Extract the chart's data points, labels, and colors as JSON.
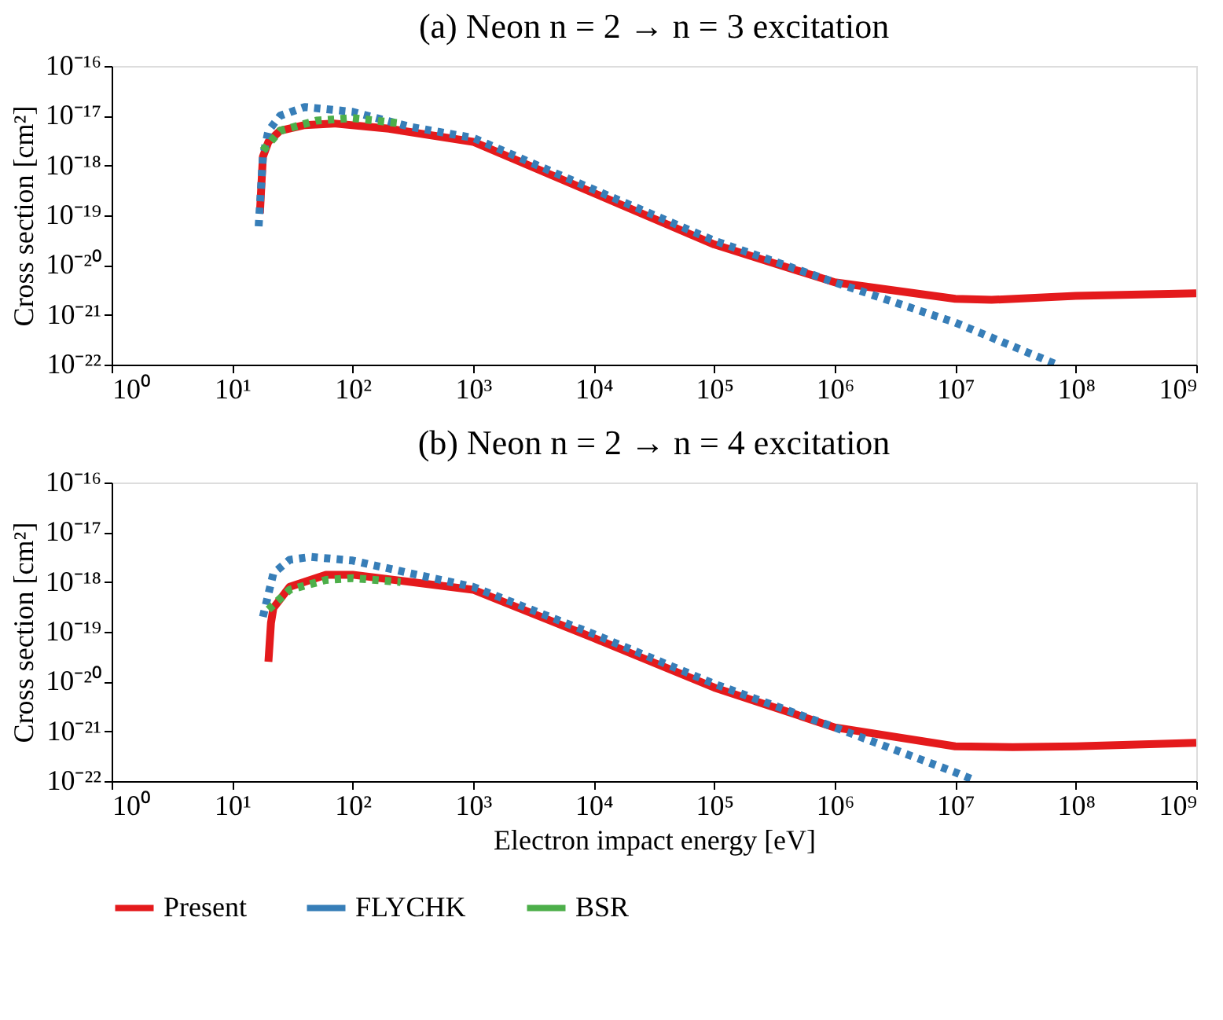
{
  "chart_data": [
    {
      "type": "line",
      "title": "(a) Neon n = 2 → n = 3 excitation",
      "ylabel": "Cross section [cm²]",
      "log": "xy",
      "legend": "bottom",
      "xlim": [
        1,
        1000000000
      ],
      "ylim": [
        1e-22,
        1e-16
      ],
      "xticks": [
        {
          "value": 1,
          "label": "10⁰"
        },
        {
          "value": 10,
          "label": "10¹"
        },
        {
          "value": 100,
          "label": "10²"
        },
        {
          "value": 1000,
          "label": "10³"
        },
        {
          "value": 10000,
          "label": "10⁴"
        },
        {
          "value": 100000,
          "label": "10⁵"
        },
        {
          "value": 1000000,
          "label": "10⁶"
        },
        {
          "value": 10000000,
          "label": "10⁷"
        },
        {
          "value": 100000000,
          "label": "10⁸"
        },
        {
          "value": 1000000000,
          "label": "10⁹"
        }
      ],
      "yticks": [
        {
          "value": 1e-22,
          "label": "10⁻²²"
        },
        {
          "value": 1e-21,
          "label": "10⁻²¹"
        },
        {
          "value": 1e-20,
          "label": "10⁻²⁰"
        },
        {
          "value": 1e-19,
          "label": "10⁻¹⁹"
        },
        {
          "value": 1e-18,
          "label": "10⁻¹⁸"
        },
        {
          "value": 1e-17,
          "label": "10⁻¹⁷"
        },
        {
          "value": 1e-16,
          "label": "10⁻¹⁶"
        }
      ],
      "series": [
        {
          "name": "Present",
          "color": "#e41a1c",
          "line_style": "solid",
          "x": [
            17,
            18,
            20,
            25,
            40,
            70,
            200,
            1000,
            10000,
            100000,
            1000000,
            10000000,
            20000000,
            100000000,
            1000000000
          ],
          "values": [
            1.1e-19,
            1.5e-18,
            3e-18,
            5e-18,
            6.5e-18,
            7e-18,
            5.5e-18,
            3e-18,
            2.8e-19,
            2.6e-20,
            4.5e-21,
            2.1e-21,
            2e-21,
            2.4e-21,
            2.7e-21
          ]
        },
        {
          "name": "FLYCHK",
          "color": "#377eb8",
          "line_style": "dotted",
          "x": [
            16.6,
            18,
            20,
            25,
            40,
            100,
            300,
            1000,
            10000,
            100000,
            1000000,
            10000000,
            70000000
          ],
          "values": [
            6e-20,
            1.5e-18,
            5e-18,
            1e-17,
            1.5e-17,
            1.2e-17,
            6e-18,
            3.6e-18,
            3.3e-19,
            3.1e-20,
            4.5e-21,
            7e-22,
            1e-22
          ]
        },
        {
          "name": "BSR",
          "color": "#4daf4a",
          "line_style": "dotted",
          "x": [
            18,
            25,
            50,
            100,
            250
          ],
          "values": [
            2e-18,
            5e-18,
            8e-18,
            9e-18,
            7e-18
          ]
        }
      ]
    },
    {
      "type": "line",
      "title": "(b) Neon n = 2 → n = 4 excitation",
      "ylabel": "Cross section [cm²]",
      "xlabel": "Electron impact energy [eV]",
      "log": "xy",
      "legend": "bottom",
      "xlim": [
        1,
        1000000000
      ],
      "ylim": [
        1e-22,
        1e-16
      ],
      "xticks": [
        {
          "value": 1,
          "label": "10⁰"
        },
        {
          "value": 10,
          "label": "10¹"
        },
        {
          "value": 100,
          "label": "10²"
        },
        {
          "value": 1000,
          "label": "10³"
        },
        {
          "value": 10000,
          "label": "10⁴"
        },
        {
          "value": 100000,
          "label": "10⁵"
        },
        {
          "value": 1000000,
          "label": "10⁶"
        },
        {
          "value": 10000000,
          "label": "10⁷"
        },
        {
          "value": 100000000,
          "label": "10⁸"
        },
        {
          "value": 1000000000,
          "label": "10⁹"
        }
      ],
      "yticks": [
        {
          "value": 1e-22,
          "label": "10⁻²²"
        },
        {
          "value": 1e-21,
          "label": "10⁻²¹"
        },
        {
          "value": 1e-20,
          "label": "10⁻²⁰"
        },
        {
          "value": 1e-19,
          "label": "10⁻¹⁹"
        },
        {
          "value": 1e-18,
          "label": "10⁻¹⁸"
        },
        {
          "value": 1e-17,
          "label": "10⁻¹⁷"
        },
        {
          "value": 1e-16,
          "label": "10⁻¹⁶"
        }
      ],
      "series": [
        {
          "name": "Present",
          "color": "#e41a1c",
          "line_style": "solid",
          "x": [
            20,
            21,
            22,
            30,
            60,
            100,
            1000,
            10000,
            100000,
            1000000,
            10000000,
            30000000,
            100000000,
            1000000000
          ],
          "values": [
            2.5e-20,
            1.5e-19,
            3e-19,
            8e-19,
            1.4e-18,
            1.4e-18,
            7e-19,
            7.5e-20,
            7.6e-21,
            1.2e-21,
            5e-22,
            4.8e-22,
            5e-22,
            5.9e-22
          ]
        },
        {
          "name": "FLYCHK",
          "color": "#377eb8",
          "line_style": "dotted",
          "x": [
            18,
            22,
            30,
            45,
            100,
            300,
            1000,
            10000,
            100000,
            1000000,
            10000000,
            15000000
          ],
          "values": [
            2e-19,
            1.5e-18,
            2.8e-18,
            3.2e-18,
            2.7e-18,
            1.5e-18,
            8e-19,
            9e-20,
            9e-21,
            1.2e-21,
            1.5e-22,
            1e-22
          ]
        },
        {
          "name": "BSR",
          "color": "#4daf4a",
          "line_style": "dotted",
          "x": [
            20,
            30,
            60,
            100,
            250
          ],
          "values": [
            2.8e-19,
            7e-19,
            1.1e-18,
            1.2e-18,
            1e-18
          ]
        }
      ]
    }
  ]
}
